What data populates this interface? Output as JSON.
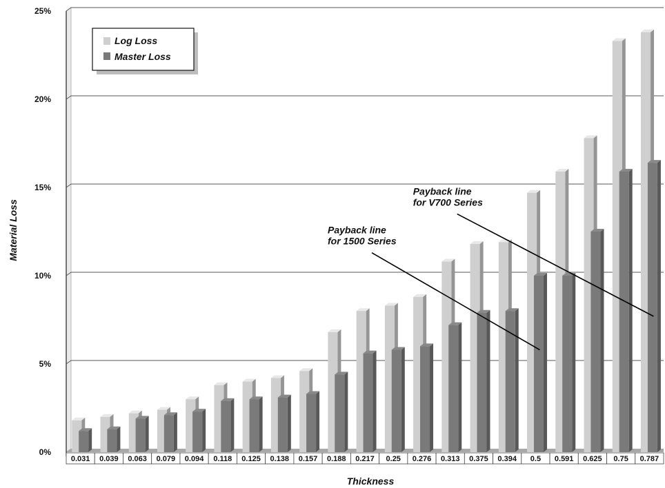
{
  "chart_data": {
    "type": "bar",
    "xlabel": "Thickness",
    "ylabel": "Material Loss",
    "ylim": [
      0,
      25
    ],
    "yticks": [
      "0%",
      "5%",
      "10%",
      "15%",
      "20%",
      "25%"
    ],
    "grid": true,
    "legend_position": "top-left",
    "categories": [
      "0.031",
      "0.039",
      "0.063",
      "0.079",
      "0.094",
      "0.118",
      "0.125",
      "0.138",
      "0.157",
      "0.188",
      "0.217",
      "0.25",
      "0.276",
      "0.313",
      "0.375",
      "0.394",
      "0.5",
      "0.591",
      "0.625",
      "0.75",
      "0.787"
    ],
    "series": [
      {
        "name": "Log Loss",
        "color": "#cfcfcf",
        "values": [
          1.8,
          2.0,
          2.2,
          2.4,
          3.0,
          3.8,
          4.0,
          4.2,
          4.6,
          6.8,
          8.0,
          8.3,
          8.8,
          10.8,
          11.8,
          11.9,
          14.7,
          15.9,
          17.8,
          23.3,
          23.8
        ]
      },
      {
        "name": "Master Loss",
        "color": "#7a7a7a",
        "values": [
          1.2,
          1.3,
          1.9,
          2.1,
          2.3,
          2.9,
          3.0,
          3.1,
          3.3,
          4.4,
          5.6,
          5.8,
          6.0,
          7.2,
          7.9,
          8.0,
          10.0,
          10.0,
          12.5,
          15.9,
          16.4
        ]
      }
    ],
    "annotations": [
      {
        "lines": [
          "Payback line",
          "for 1500 Series"
        ],
        "from": {
          "x": "0.217",
          "y": 11.3
        },
        "to": {
          "x": "0.5",
          "y": 5.8
        }
      },
      {
        "lines": [
          "Payback line",
          "for V700 Series"
        ],
        "from": {
          "x": "0.313",
          "y": 13.5
        },
        "to": {
          "x": "0.787",
          "y": 7.7
        }
      }
    ]
  }
}
